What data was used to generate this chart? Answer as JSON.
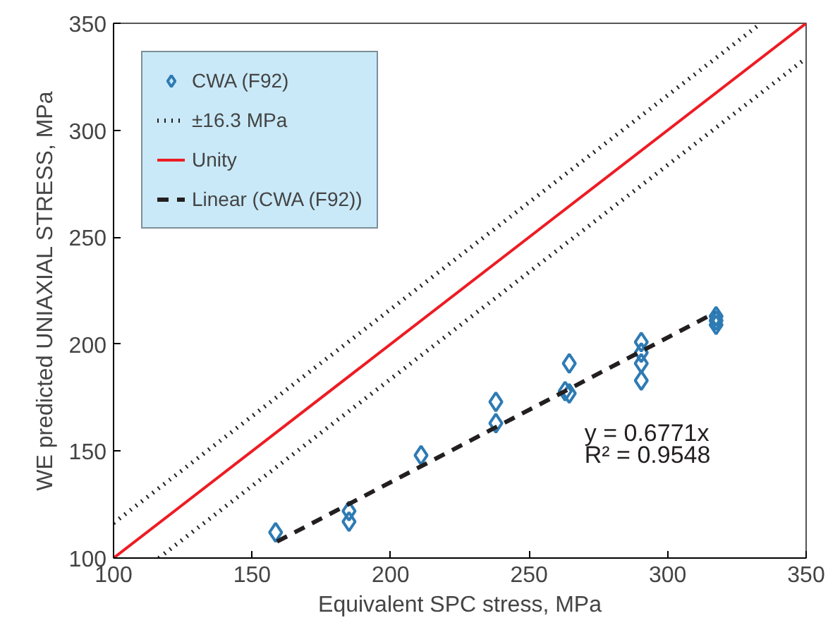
{
  "chart_data": {
    "type": "scatter",
    "xlabel": "Equivalent SPC stress, MPa",
    "ylabel": "WE predicted UNIAXIAL STRESS, MPa",
    "xlim": [
      100,
      350
    ],
    "ylim": [
      100,
      350
    ],
    "xticks": [
      100,
      150,
      200,
      250,
      300,
      350
    ],
    "yticks": [
      100,
      150,
      200,
      250,
      300,
      350
    ],
    "grid": false,
    "legend": "top left",
    "series": [
      {
        "name": "CWA (F92)",
        "marker": "diamond",
        "color": "#2e7bb4",
        "x": [
          158.5,
          185,
          185,
          211,
          238,
          238,
          264.5,
          263,
          264.5,
          290.5,
          290.5,
          290.5,
          290.5,
          317.5,
          317.5,
          317.5
        ],
        "values": [
          112,
          122,
          117,
          148,
          173,
          163,
          191,
          178,
          177,
          201,
          196,
          191,
          183,
          213,
          211,
          209
        ]
      },
      {
        "name": "±16.3 MPa",
        "type": "line",
        "line_style": "dotted",
        "color": "#231f20",
        "x": [
          100,
          333.7
        ],
        "values": [
          116.3,
          350
        ]
      },
      {
        "type": "line",
        "line_style": "dotted",
        "color": "#231f20",
        "x": [
          116.3,
          350
        ],
        "values": [
          100,
          333.7
        ]
      },
      {
        "name": "Unity",
        "type": "line",
        "line_style": "solid",
        "color": "#ed1c24",
        "x": [
          100,
          350
        ],
        "values": [
          100,
          350
        ]
      },
      {
        "name": "Linear (CWA (F92))",
        "type": "line",
        "line_style": "dashed",
        "color": "#231f20",
        "x": [
          159,
          317
        ],
        "values": [
          107.7,
          214.6
        ]
      }
    ],
    "annotations": [
      "y = 0.6771x",
      "R² = 0.9548"
    ]
  }
}
